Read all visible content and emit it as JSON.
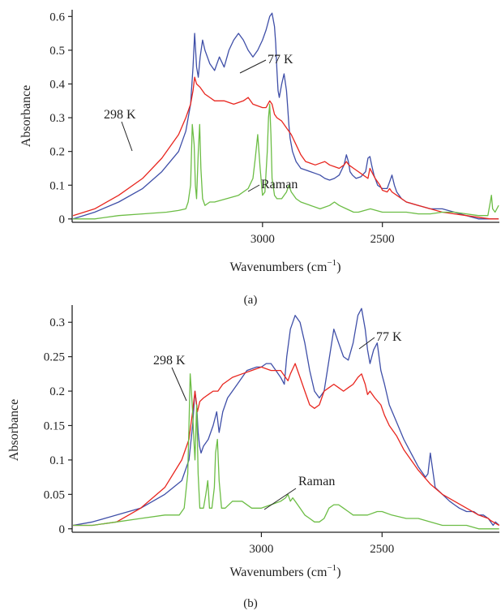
{
  "chart_data": [
    {
      "panel_label": "(a)",
      "type": "line",
      "xlabel": "Wavenumbers (cm",
      "xlabel_sup": "−1",
      "xlabel_close": ")",
      "ylabel": "Absorbance",
      "x_reversed": true,
      "xlim": [
        3794,
        2012
      ],
      "ylim": [
        -0.01,
        0.62
      ],
      "xticks": [
        3000,
        2500
      ],
      "yticks": [
        {
          "value": 0,
          "label": "0"
        },
        {
          "value": 0.1,
          "label": "0.1"
        },
        {
          "value": 0.2,
          "label": "0.2"
        },
        {
          "value": 0.3,
          "label": "0.3"
        },
        {
          "value": 0.4,
          "label": "0.4"
        },
        {
          "value": 0.5,
          "label": "0.5"
        },
        {
          "value": 0.6,
          "label": "0.6"
        }
      ],
      "annotations": [
        {
          "text": "298 K",
          "series": "298 K"
        },
        {
          "text": "77 K",
          "series": "77 K"
        },
        {
          "text": "Raman",
          "series": "Raman"
        }
      ],
      "series": [
        {
          "name": "77 K",
          "color": "#3f4fa8",
          "x": [
            3790,
            3700,
            3600,
            3500,
            3420,
            3350,
            3320,
            3300,
            3290,
            3283,
            3275,
            3268,
            3260,
            3250,
            3240,
            3220,
            3200,
            3180,
            3160,
            3140,
            3120,
            3100,
            3080,
            3060,
            3040,
            3020,
            3000,
            2985,
            2970,
            2960,
            2950,
            2945,
            2940,
            2935,
            2930,
            2920,
            2910,
            2900,
            2895,
            2890,
            2885,
            2875,
            2860,
            2840,
            2820,
            2800,
            2780,
            2760,
            2740,
            2720,
            2700,
            2680,
            2660,
            2650,
            2642,
            2635,
            2625,
            2610,
            2590,
            2570,
            2560,
            2552,
            2545,
            2535,
            2520,
            2500,
            2480,
            2470,
            2460,
            2450,
            2440,
            2420,
            2400,
            2350,
            2300,
            2250,
            2200,
            2150,
            2100,
            2050,
            2015
          ],
          "y": [
            0.0,
            0.02,
            0.05,
            0.09,
            0.14,
            0.2,
            0.26,
            0.34,
            0.45,
            0.55,
            0.45,
            0.42,
            0.48,
            0.53,
            0.5,
            0.46,
            0.44,
            0.48,
            0.45,
            0.5,
            0.53,
            0.55,
            0.53,
            0.5,
            0.48,
            0.5,
            0.53,
            0.56,
            0.6,
            0.61,
            0.57,
            0.52,
            0.44,
            0.38,
            0.36,
            0.4,
            0.43,
            0.38,
            0.33,
            0.28,
            0.24,
            0.2,
            0.17,
            0.15,
            0.145,
            0.14,
            0.135,
            0.13,
            0.12,
            0.115,
            0.12,
            0.13,
            0.16,
            0.19,
            0.17,
            0.14,
            0.13,
            0.12,
            0.125,
            0.14,
            0.18,
            0.185,
            0.16,
            0.13,
            0.1,
            0.09,
            0.09,
            0.11,
            0.13,
            0.1,
            0.08,
            0.06,
            0.05,
            0.04,
            0.03,
            0.03,
            0.02,
            0.01,
            0.0,
            0.0,
            0.0
          ]
        },
        {
          "name": "298 K",
          "color": "#e8261f",
          "x": [
            3790,
            3700,
            3600,
            3500,
            3420,
            3350,
            3320,
            3300,
            3290,
            3283,
            3275,
            3260,
            3240,
            3220,
            3200,
            3160,
            3120,
            3080,
            3060,
            3040,
            3000,
            2985,
            2970,
            2960,
            2950,
            2940,
            2920,
            2900,
            2880,
            2860,
            2840,
            2820,
            2800,
            2780,
            2760,
            2740,
            2720,
            2700,
            2680,
            2660,
            2650,
            2640,
            2620,
            2600,
            2580,
            2560,
            2552,
            2545,
            2530,
            2510,
            2500,
            2480,
            2470,
            2460,
            2440,
            2420,
            2400,
            2350,
            2300,
            2250,
            2200,
            2150,
            2100,
            2050,
            2015
          ],
          "y": [
            0.01,
            0.03,
            0.07,
            0.12,
            0.18,
            0.25,
            0.3,
            0.34,
            0.38,
            0.42,
            0.4,
            0.39,
            0.37,
            0.36,
            0.35,
            0.35,
            0.34,
            0.35,
            0.36,
            0.34,
            0.33,
            0.33,
            0.35,
            0.34,
            0.31,
            0.3,
            0.29,
            0.27,
            0.25,
            0.22,
            0.19,
            0.17,
            0.165,
            0.16,
            0.165,
            0.17,
            0.16,
            0.155,
            0.15,
            0.16,
            0.17,
            0.16,
            0.15,
            0.14,
            0.13,
            0.12,
            0.15,
            0.14,
            0.12,
            0.1,
            0.085,
            0.08,
            0.09,
            0.08,
            0.07,
            0.06,
            0.05,
            0.04,
            0.03,
            0.02,
            0.015,
            0.01,
            0.005,
            0.0,
            0.0
          ]
        },
        {
          "name": "Raman",
          "color": "#6cbd45",
          "x": [
            3790,
            3700,
            3600,
            3500,
            3400,
            3350,
            3320,
            3310,
            3300,
            3293,
            3285,
            3280,
            3275,
            3268,
            3262,
            3257,
            3250,
            3240,
            3220,
            3200,
            3150,
            3100,
            3060,
            3040,
            3030,
            3020,
            3010,
            3000,
            2990,
            2980,
            2975,
            2970,
            2965,
            2960,
            2950,
            2940,
            2920,
            2900,
            2890,
            2880,
            2870,
            2860,
            2840,
            2800,
            2760,
            2720,
            2700,
            2680,
            2650,
            2620,
            2600,
            2550,
            2500,
            2450,
            2400,
            2350,
            2300,
            2250,
            2200,
            2150,
            2100,
            2060,
            2050,
            2045,
            2040,
            2030,
            2015
          ],
          "y": [
            0.0,
            0.0,
            0.01,
            0.015,
            0.02,
            0.025,
            0.03,
            0.05,
            0.1,
            0.28,
            0.22,
            0.1,
            0.06,
            0.2,
            0.28,
            0.15,
            0.06,
            0.04,
            0.05,
            0.05,
            0.06,
            0.07,
            0.09,
            0.12,
            0.18,
            0.25,
            0.15,
            0.07,
            0.08,
            0.2,
            0.3,
            0.34,
            0.25,
            0.12,
            0.07,
            0.06,
            0.06,
            0.08,
            0.1,
            0.08,
            0.07,
            0.06,
            0.05,
            0.04,
            0.03,
            0.04,
            0.05,
            0.04,
            0.03,
            0.02,
            0.02,
            0.03,
            0.02,
            0.02,
            0.02,
            0.015,
            0.015,
            0.02,
            0.02,
            0.015,
            0.01,
            0.01,
            0.05,
            0.07,
            0.03,
            0.02,
            0.04
          ]
        }
      ]
    },
    {
      "panel_label": "(b)",
      "type": "line",
      "xlabel": "Wavenumbers (cm",
      "xlabel_sup": "−1",
      "xlabel_close": ")",
      "ylabel": "Absorbance",
      "x_reversed": true,
      "xlim": [
        3784,
        2014
      ],
      "ylim": [
        -0.005,
        0.325
      ],
      "xticks": [
        3000,
        2500
      ],
      "yticks": [
        {
          "value": 0,
          "label": "0"
        },
        {
          "value": 0.05,
          "label": "0.05"
        },
        {
          "value": 0.1,
          "label": "0.1"
        },
        {
          "value": 0.15,
          "label": "0.15"
        },
        {
          "value": 0.2,
          "label": "0.2"
        },
        {
          "value": 0.25,
          "label": "0.25"
        },
        {
          "value": 0.3,
          "label": "0.3"
        }
      ],
      "annotations": [
        {
          "text": "298 K",
          "series": "298 K"
        },
        {
          "text": "77 K",
          "series": "77 K"
        },
        {
          "text": "Raman",
          "series": "Raman"
        }
      ],
      "series": [
        {
          "name": "77 K",
          "color": "#3f4fa8",
          "x": [
            3780,
            3700,
            3600,
            3500,
            3400,
            3330,
            3300,
            3285,
            3275,
            3268,
            3262,
            3256,
            3250,
            3240,
            3220,
            3200,
            3185,
            3175,
            3160,
            3140,
            3100,
            3060,
            3020,
            3000,
            2980,
            2960,
            2940,
            2920,
            2905,
            2895,
            2880,
            2860,
            2840,
            2820,
            2800,
            2780,
            2760,
            2740,
            2720,
            2700,
            2680,
            2660,
            2640,
            2620,
            2600,
            2585,
            2570,
            2560,
            2550,
            2535,
            2520,
            2505,
            2490,
            2470,
            2440,
            2410,
            2380,
            2350,
            2330,
            2320,
            2310,
            2300,
            2280,
            2250,
            2220,
            2200,
            2180,
            2150,
            2120,
            2100,
            2080,
            2060,
            2050,
            2040,
            2030,
            2015
          ],
          "y": [
            0.005,
            0.01,
            0.02,
            0.03,
            0.05,
            0.07,
            0.1,
            0.15,
            0.2,
            0.18,
            0.14,
            0.12,
            0.11,
            0.12,
            0.13,
            0.15,
            0.17,
            0.14,
            0.17,
            0.19,
            0.21,
            0.23,
            0.235,
            0.235,
            0.24,
            0.24,
            0.23,
            0.22,
            0.21,
            0.25,
            0.29,
            0.31,
            0.3,
            0.27,
            0.23,
            0.2,
            0.19,
            0.2,
            0.245,
            0.29,
            0.27,
            0.25,
            0.245,
            0.27,
            0.31,
            0.32,
            0.29,
            0.26,
            0.24,
            0.26,
            0.27,
            0.23,
            0.21,
            0.18,
            0.155,
            0.13,
            0.11,
            0.09,
            0.08,
            0.075,
            0.08,
            0.11,
            0.06,
            0.05,
            0.04,
            0.035,
            0.03,
            0.025,
            0.025,
            0.02,
            0.02,
            0.015,
            0.01,
            0.005,
            0.01,
            0.005
          ]
        },
        {
          "name": "298 K",
          "color": "#e8261f",
          "x": [
            3780,
            3700,
            3600,
            3500,
            3400,
            3330,
            3300,
            3285,
            3275,
            3265,
            3255,
            3240,
            3220,
            3200,
            3180,
            3160,
            3120,
            3080,
            3040,
            3000,
            2960,
            2920,
            2900,
            2890,
            2880,
            2860,
            2840,
            2820,
            2800,
            2780,
            2760,
            2740,
            2720,
            2700,
            2680,
            2660,
            2640,
            2620,
            2600,
            2585,
            2570,
            2560,
            2550,
            2530,
            2505,
            2490,
            2470,
            2440,
            2410,
            2380,
            2350,
            2300,
            2250,
            2200,
            2150,
            2100,
            2060,
            2050,
            2040,
            2015
          ],
          "y": [
            0.005,
            0.005,
            0.01,
            0.03,
            0.06,
            0.1,
            0.13,
            0.17,
            0.2,
            0.17,
            0.185,
            0.19,
            0.195,
            0.2,
            0.2,
            0.21,
            0.22,
            0.225,
            0.23,
            0.235,
            0.23,
            0.23,
            0.22,
            0.215,
            0.225,
            0.24,
            0.22,
            0.2,
            0.18,
            0.175,
            0.18,
            0.2,
            0.205,
            0.21,
            0.205,
            0.2,
            0.205,
            0.21,
            0.22,
            0.225,
            0.21,
            0.195,
            0.2,
            0.19,
            0.18,
            0.165,
            0.15,
            0.135,
            0.115,
            0.1,
            0.085,
            0.065,
            0.05,
            0.04,
            0.03,
            0.02,
            0.015,
            0.012,
            0.01,
            0.005
          ]
        },
        {
          "name": "Raman",
          "color": "#6cbd45",
          "x": [
            3780,
            3700,
            3600,
            3500,
            3400,
            3340,
            3320,
            3305,
            3300,
            3295,
            3290,
            3285,
            3280,
            3275,
            3268,
            3262,
            3255,
            3240,
            3230,
            3222,
            3215,
            3205,
            3195,
            3190,
            3182,
            3175,
            3165,
            3150,
            3120,
            3080,
            3040,
            3000,
            2960,
            2920,
            2900,
            2890,
            2880,
            2870,
            2860,
            2840,
            2820,
            2800,
            2780,
            2760,
            2740,
            2720,
            2700,
            2680,
            2660,
            2640,
            2620,
            2600,
            2560,
            2520,
            2500,
            2460,
            2400,
            2350,
            2300,
            2250,
            2200,
            2150,
            2100,
            2050,
            2015
          ],
          "y": [
            0.005,
            0.005,
            0.01,
            0.015,
            0.02,
            0.02,
            0.03,
            0.08,
            0.15,
            0.225,
            0.2,
            0.17,
            0.13,
            0.1,
            0.18,
            0.08,
            0.03,
            0.03,
            0.05,
            0.07,
            0.03,
            0.03,
            0.06,
            0.11,
            0.13,
            0.07,
            0.03,
            0.03,
            0.04,
            0.04,
            0.03,
            0.03,
            0.035,
            0.04,
            0.045,
            0.05,
            0.04,
            0.045,
            0.04,
            0.03,
            0.02,
            0.015,
            0.01,
            0.01,
            0.015,
            0.03,
            0.035,
            0.035,
            0.03,
            0.025,
            0.02,
            0.02,
            0.02,
            0.025,
            0.025,
            0.02,
            0.015,
            0.015,
            0.01,
            0.005,
            0.005,
            0.005,
            0.0,
            0.0,
            0.0
          ]
        }
      ]
    }
  ]
}
